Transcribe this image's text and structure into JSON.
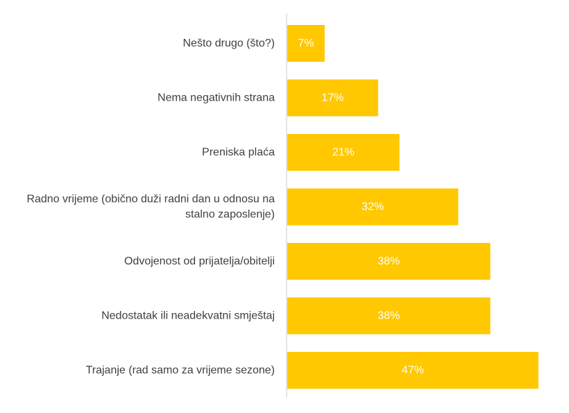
{
  "colors": {
    "bar": "#FFC800",
    "axis": "#C8C8C8",
    "label_text": "#404040",
    "value_text": "#FFFFFF",
    "background": "#FFFFFF"
  },
  "chart_data": {
    "type": "bar",
    "orientation": "horizontal",
    "title": "",
    "xlabel": "",
    "ylabel": "",
    "xlim": [
      0,
      50
    ],
    "grid": false,
    "legend": "none",
    "categories": [
      "Nešto drugo (što?)",
      "Nema negativnih strana",
      "Preniska plaća",
      "Radno vrijeme (obično duži radni dan u odnosu na stalno zaposlenje)",
      "Odvojenost od prijatelja/obitelji",
      "Nedostatak ili neadekvatni smještaj",
      "Trajanje (rad samo za vrijeme sezone)"
    ],
    "category_lines": [
      [
        "Nešto drugo (što?)"
      ],
      [
        "Nema negativnih strana"
      ],
      [
        "Preniska plaća"
      ],
      [
        "Radno vrijeme (obično duži radni dan u odnosu na",
        "stalno zaposlenje)"
      ],
      [
        "Odvojenost od prijatelja/obitelji"
      ],
      [
        "Nedostatak ili neadekvatni smještaj"
      ],
      [
        "Trajanje (rad samo za vrijeme sezone)"
      ]
    ],
    "values": [
      7,
      17,
      21,
      32,
      38,
      38,
      47
    ],
    "data_labels": [
      "7%",
      "17%",
      "21%",
      "32%",
      "38%",
      "38%",
      "47%"
    ]
  }
}
